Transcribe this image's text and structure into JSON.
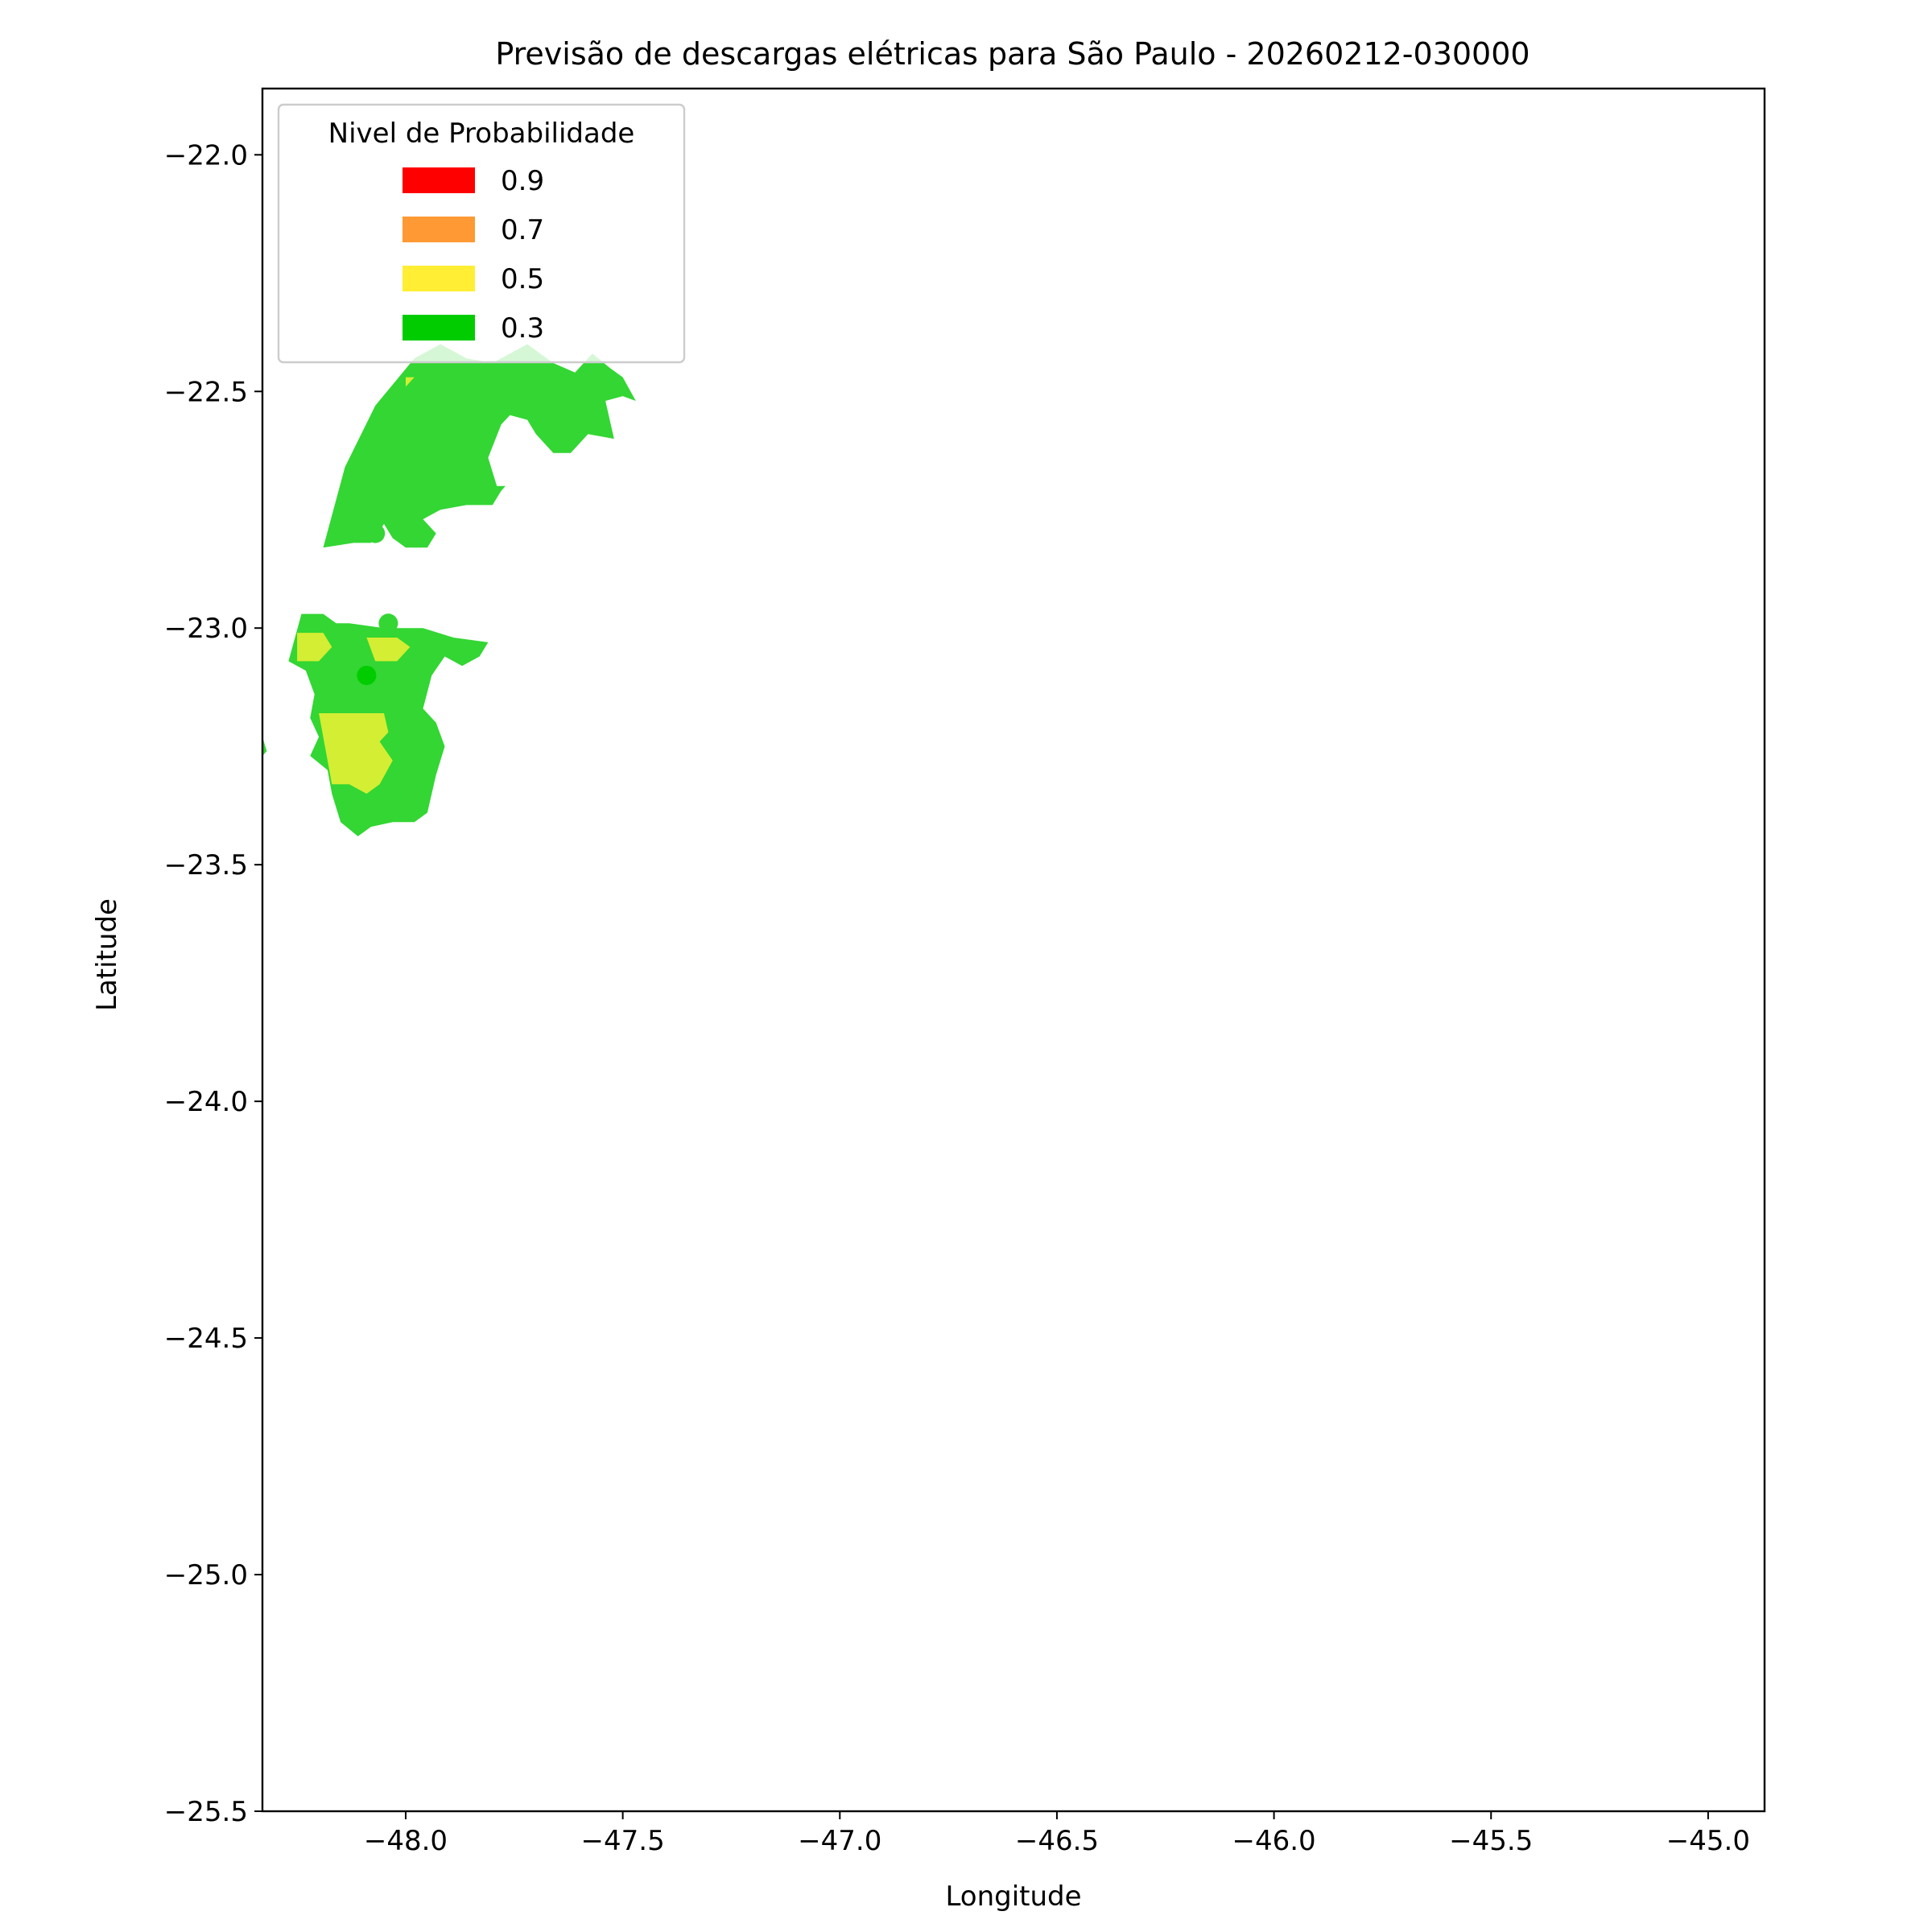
{
  "chart_data": {
    "type": "area",
    "title": "Previsão de descargas elétricas para São Paulo - 20260212-030000",
    "xlabel": "Longitude",
    "ylabel": "Latitude",
    "xlim": [
      -48.33,
      -44.87
    ],
    "ylim": [
      -25.5,
      -21.86
    ],
    "xticks": [
      -48.0,
      -47.5,
      -47.0,
      -46.5,
      -46.0,
      -45.5,
      -45.0
    ],
    "yticks": [
      -22.0,
      -22.5,
      -23.0,
      -23.5,
      -24.0,
      -24.5,
      -25.0,
      -25.5
    ],
    "xtick_labels": [
      "−48.0",
      "−47.5",
      "−47.0",
      "−46.5",
      "−46.0",
      "−45.5",
      "−45.0"
    ],
    "ytick_labels": [
      "−22.0",
      "−22.5",
      "−23.0",
      "−23.5",
      "−24.0",
      "−24.5",
      "−25.0",
      "−25.5"
    ],
    "grid": false,
    "legend": {
      "title": "Nivel de Probabilidade",
      "placement": "top-left",
      "entries": [
        {
          "label": "0.9",
          "color": "#ff0000"
        },
        {
          "label": "0.7",
          "color": "#ff9933"
        },
        {
          "label": "0.5",
          "color": "#ffee33"
        },
        {
          "label": "0.3",
          "color": "#00cc00"
        }
      ]
    },
    "regions": [
      {
        "level": "0.3",
        "color": "#33d633",
        "polygon": [
          [
            -47.98,
            -22.43
          ],
          [
            -47.92,
            -22.4
          ],
          [
            -47.86,
            -22.43
          ],
          [
            -47.8,
            -22.44
          ],
          [
            -47.72,
            -22.4
          ],
          [
            -47.66,
            -22.44
          ],
          [
            -47.61,
            -22.46
          ],
          [
            -47.57,
            -22.42
          ],
          [
            -47.53,
            -22.45
          ],
          [
            -47.5,
            -22.47
          ],
          [
            -47.47,
            -22.52
          ],
          [
            -47.5,
            -22.51
          ],
          [
            -47.54,
            -22.52
          ],
          [
            -47.52,
            -22.6
          ],
          [
            -47.58,
            -22.59
          ],
          [
            -47.62,
            -22.63
          ],
          [
            -47.66,
            -22.63
          ],
          [
            -47.7,
            -22.59
          ],
          [
            -47.72,
            -22.56
          ],
          [
            -47.76,
            -22.55
          ],
          [
            -47.78,
            -22.57
          ],
          [
            -47.81,
            -22.64
          ],
          [
            -47.79,
            -22.7
          ],
          [
            -47.77,
            -22.7
          ],
          [
            -47.78,
            -22.71
          ],
          [
            -47.8,
            -22.74
          ],
          [
            -47.86,
            -22.74
          ],
          [
            -47.92,
            -22.75
          ],
          [
            -47.96,
            -22.77
          ],
          [
            -47.93,
            -22.8
          ],
          [
            -47.95,
            -22.83
          ],
          [
            -48.0,
            -22.83
          ],
          [
            -48.03,
            -22.81
          ],
          [
            -48.05,
            -22.78
          ],
          [
            -48.08,
            -22.82
          ],
          [
            -48.12,
            -22.82
          ],
          [
            -48.19,
            -22.83
          ],
          [
            -48.14,
            -22.66
          ],
          [
            -48.07,
            -22.53
          ]
        ]
      },
      {
        "level": "0.3",
        "color": "#33d633",
        "polygon": [
          [
            -48.24,
            -22.97
          ],
          [
            -48.19,
            -22.97
          ],
          [
            -48.16,
            -22.99
          ],
          [
            -48.13,
            -22.99
          ],
          [
            -48.05,
            -23.0
          ],
          [
            -47.96,
            -23.0
          ],
          [
            -47.89,
            -23.02
          ],
          [
            -47.81,
            -23.03
          ],
          [
            -47.83,
            -23.06
          ],
          [
            -47.87,
            -23.08
          ],
          [
            -47.91,
            -23.06
          ],
          [
            -47.94,
            -23.1
          ],
          [
            -47.96,
            -23.17
          ],
          [
            -47.93,
            -23.2
          ],
          [
            -47.91,
            -23.25
          ],
          [
            -47.93,
            -23.31
          ],
          [
            -47.95,
            -23.39
          ],
          [
            -47.98,
            -23.41
          ],
          [
            -48.03,
            -23.41
          ],
          [
            -48.08,
            -23.42
          ],
          [
            -48.11,
            -23.44
          ],
          [
            -48.15,
            -23.41
          ],
          [
            -48.17,
            -23.35
          ],
          [
            -48.18,
            -23.3
          ],
          [
            -48.22,
            -23.27
          ],
          [
            -48.2,
            -23.23
          ],
          [
            -48.22,
            -23.19
          ],
          [
            -48.21,
            -23.14
          ],
          [
            -48.23,
            -23.09
          ],
          [
            -48.27,
            -23.07
          ]
        ]
      },
      {
        "level": "0.3",
        "color": "#33d633",
        "polygon": [
          [
            -48.33,
            -23.23
          ],
          [
            -48.32,
            -23.26
          ],
          [
            -48.33,
            -23.27
          ]
        ]
      },
      {
        "level": "0.5",
        "color": "#d4ee33",
        "polygon": [
          [
            -48.2,
            -23.18
          ],
          [
            -48.05,
            -23.18
          ],
          [
            -48.04,
            -23.22
          ],
          [
            -48.06,
            -23.24
          ],
          [
            -48.03,
            -23.28
          ],
          [
            -48.06,
            -23.33
          ],
          [
            -48.09,
            -23.35
          ],
          [
            -48.13,
            -23.33
          ],
          [
            -48.17,
            -23.33
          ]
        ]
      },
      {
        "level": "0.5",
        "color": "#d4ee33",
        "polygon": [
          [
            -48.25,
            -23.01
          ],
          [
            -48.19,
            -23.01
          ],
          [
            -48.17,
            -23.04
          ],
          [
            -48.2,
            -23.07
          ],
          [
            -48.25,
            -23.07
          ]
        ]
      },
      {
        "level": "0.5",
        "color": "#d4ee33",
        "polygon": [
          [
            -48.09,
            -23.02
          ],
          [
            -48.02,
            -23.02
          ],
          [
            -47.99,
            -23.04
          ],
          [
            -48.02,
            -23.07
          ],
          [
            -48.07,
            -23.07
          ]
        ]
      },
      {
        "level": "0.5",
        "color": "#d4ee33",
        "polygon": [
          [
            -48.0,
            -22.47
          ],
          [
            -47.98,
            -22.47
          ],
          [
            -48.0,
            -22.49
          ]
        ]
      }
    ],
    "points": [
      {
        "x": -48.07,
        "y": -22.8,
        "color": "#33d633"
      },
      {
        "x": -48.04,
        "y": -22.99,
        "color": "#33d633"
      },
      {
        "x": -48.09,
        "y": -23.1,
        "color": "#00cc00"
      }
    ]
  }
}
